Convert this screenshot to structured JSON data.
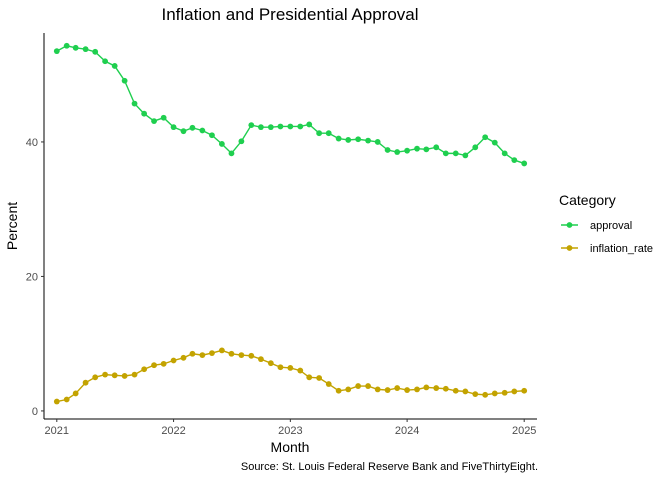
{
  "chart_data": {
    "type": "line",
    "title": "Inflation and Presidential Approval",
    "xlabel": "Month",
    "ylabel": "Percent",
    "caption": "Source: St. Louis Federal Reserve Bank and FiveThirtyEight.",
    "legend_title": "Category",
    "legend_position": "right",
    "grid": false,
    "xlim": [
      "2020-11-22",
      "2025-02-10"
    ],
    "ylim": [
      -1.2,
      56.2
    ],
    "x_ticks": [
      "2021",
      "2022",
      "2023",
      "2024",
      "2025"
    ],
    "y_ticks": [
      0,
      20,
      40
    ],
    "x": [
      "2021-01",
      "2021-02",
      "2021-03",
      "2021-04",
      "2021-05",
      "2021-06",
      "2021-07",
      "2021-08",
      "2021-09",
      "2021-10",
      "2021-11",
      "2021-12",
      "2022-01",
      "2022-02",
      "2022-03",
      "2022-04",
      "2022-05",
      "2022-06",
      "2022-07",
      "2022-08",
      "2022-09",
      "2022-10",
      "2022-11",
      "2022-12",
      "2023-01",
      "2023-02",
      "2023-03",
      "2023-04",
      "2023-05",
      "2023-06",
      "2023-07",
      "2023-08",
      "2023-09",
      "2023-10",
      "2023-11",
      "2023-12",
      "2024-01",
      "2024-02",
      "2024-03",
      "2024-04",
      "2024-05",
      "2024-06",
      "2024-07",
      "2024-08",
      "2024-09",
      "2024-10",
      "2024-11",
      "2024-12",
      "2025-01"
    ],
    "series": [
      {
        "name": "approval",
        "color": "#1fcf4f",
        "values": [
          53.5,
          54.3,
          54.0,
          53.8,
          53.4,
          52.0,
          51.3,
          49.1,
          45.7,
          44.2,
          43.1,
          43.6,
          42.2,
          41.6,
          42.1,
          41.7,
          41.0,
          39.7,
          38.3,
          40.1,
          42.5,
          42.2,
          42.2,
          42.3,
          42.3,
          42.3,
          42.6,
          41.3,
          41.3,
          40.5,
          40.3,
          40.4,
          40.2,
          40.0,
          38.8,
          38.5,
          38.7,
          39.0,
          38.9,
          39.2,
          38.3,
          38.3,
          38.0,
          39.2,
          40.7,
          39.9,
          38.3,
          37.3,
          36.8
        ]
      },
      {
        "name": "inflation_rate",
        "color": "#c3a300",
        "values": [
          1.4,
          1.7,
          2.6,
          4.2,
          5.0,
          5.4,
          5.3,
          5.2,
          5.4,
          6.2,
          6.8,
          7.0,
          7.5,
          7.9,
          8.5,
          8.3,
          8.6,
          9.0,
          8.5,
          8.3,
          8.2,
          7.7,
          7.1,
          6.5,
          6.4,
          6.0,
          5.0,
          4.9,
          4.0,
          3.0,
          3.2,
          3.7,
          3.7,
          3.2,
          3.1,
          3.4,
          3.1,
          3.2,
          3.5,
          3.4,
          3.3,
          3.0,
          2.9,
          2.5,
          2.4,
          2.6,
          2.7,
          2.9,
          3.0
        ]
      }
    ]
  }
}
